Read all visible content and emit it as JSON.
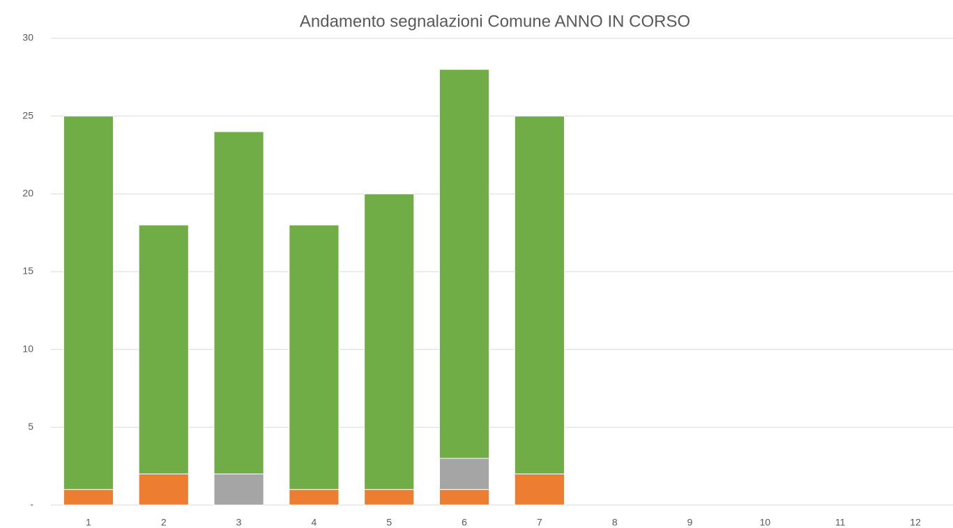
{
  "chart_data": {
    "type": "stacked_bar",
    "title": "Andamento segnalazioni Comune ANNO IN CORSO",
    "categories": [
      "1",
      "2",
      "3",
      "4",
      "5",
      "6",
      "7",
      "8",
      "9",
      "10",
      "11",
      "12"
    ],
    "series": [
      {
        "color": "#ed7d31",
        "values": [
          1,
          2,
          0,
          1,
          1,
          1,
          2,
          null,
          null,
          null,
          null,
          null
        ]
      },
      {
        "color": "#a5a5a5",
        "values": [
          0,
          0,
          2,
          0,
          0,
          2,
          0,
          null,
          null,
          null,
          null,
          null
        ]
      },
      {
        "color": "#70ad47",
        "values": [
          24,
          16,
          22,
          17,
          19,
          25,
          23,
          null,
          null,
          null,
          null,
          null
        ]
      }
    ],
    "ylim": [
      0,
      30
    ],
    "yticks": [
      {
        "value": 0,
        "label": "-"
      },
      5,
      10,
      15,
      20,
      25,
      30
    ],
    "grid": true
  }
}
